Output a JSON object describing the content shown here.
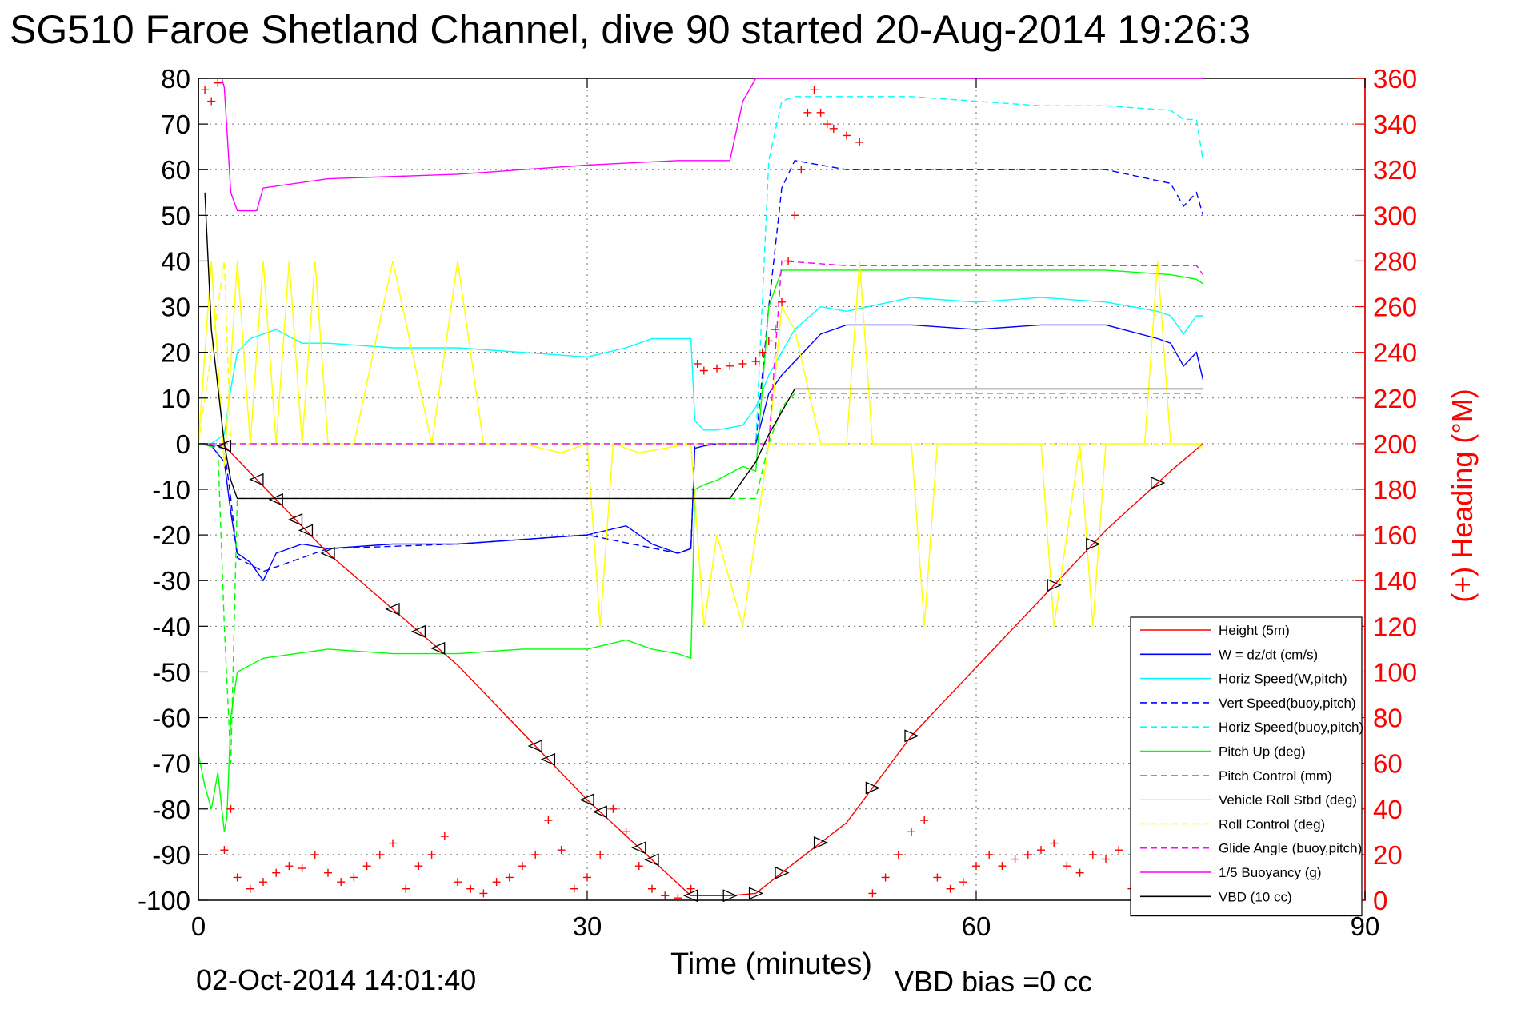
{
  "chart_data": {
    "type": "line",
    "title": "SG510 Faroe Shetland Channel, dive 90 started 20-Aug-2014 19:26:3",
    "xlabel": "Time (minutes)",
    "ylabel": "",
    "ylabel_right": "(+) Heading (°M)",
    "xlim": [
      0,
      90
    ],
    "ylim": [
      -100,
      80
    ],
    "ylim_right": [
      0,
      360
    ],
    "x_ticks": [
      "0",
      "30",
      "60",
      "90"
    ],
    "y_ticks": [
      "80",
      "70",
      "60",
      "50",
      "40",
      "30",
      "20",
      "10",
      "0",
      "-10",
      "-20",
      "-30",
      "-40",
      "-50",
      "-60",
      "-70",
      "-80",
      "-90",
      "-100"
    ],
    "y_right_ticks": [
      "360",
      "340",
      "320",
      "300",
      "280",
      "260",
      "240",
      "220",
      "200",
      "180",
      "160",
      "140",
      "120",
      "100",
      "80",
      "60",
      "40",
      "20",
      "0"
    ],
    "grid": true,
    "legend_position": "bottom-right",
    "footer_date": "02-Oct-2014 14:01:40",
    "footer_note": "VBD bias =0 cc",
    "series": [
      {
        "name": "Height (5m)",
        "color": "#ff0000",
        "style": "solid",
        "x": [
          0,
          2,
          10,
          20,
          30,
          38,
          41,
          43,
          45,
          50,
          55,
          60,
          65,
          70,
          75,
          77.5
        ],
        "y": [
          0,
          -0.5,
          -24,
          -48.5,
          -78,
          -99,
          -99,
          -98.5,
          -94,
          -83,
          -64,
          -49,
          -34,
          -19,
          -6,
          0
        ]
      },
      {
        "name": "W = dz/dt (cm/s)",
        "color": "#0000ff",
        "style": "solid",
        "x": [
          0,
          1,
          2,
          2.5,
          3,
          4,
          5,
          6,
          8,
          10,
          15,
          20,
          25,
          30,
          33,
          35,
          37,
          38,
          38.3,
          39,
          40,
          42,
          43,
          44,
          45,
          46,
          48,
          50,
          55,
          60,
          65,
          70,
          74,
          75,
          76,
          77,
          77.5
        ],
        "y": [
          0,
          -0.5,
          -4,
          -15,
          -24,
          -26,
          -30,
          -24,
          -22,
          -23,
          -22,
          -22,
          -21,
          -20,
          -18,
          -22,
          -24,
          -23,
          -1,
          -0.5,
          0,
          0,
          0,
          11,
          15,
          18,
          24,
          26,
          26,
          25,
          26,
          26,
          23,
          22,
          17,
          20,
          14
        ]
      },
      {
        "name": "Horiz Speed(W,pitch)",
        "color": "#00ffff",
        "style": "solid",
        "x": [
          0,
          1,
          2,
          2.5,
          3,
          4,
          6,
          8,
          10,
          15,
          20,
          25,
          30,
          33,
          35,
          37,
          38,
          38.3,
          39,
          40,
          42,
          43,
          44,
          45,
          46,
          48,
          50,
          55,
          60,
          65,
          70,
          74,
          75,
          76,
          77,
          77.5
        ],
        "y": [
          0,
          0,
          2,
          12,
          20,
          23,
          25,
          22,
          22,
          21,
          21,
          20,
          19,
          21,
          23,
          23,
          23,
          5,
          3,
          3,
          4,
          8,
          15,
          20,
          25,
          30,
          29,
          32,
          31,
          32,
          31,
          29,
          28,
          24,
          28,
          28
        ]
      },
      {
        "name": "Vert Speed(buoy,pitch)",
        "color": "#0000ff",
        "style": "dashed",
        "x": [
          0,
          2,
          2.5,
          3,
          5,
          10,
          20,
          30,
          37,
          38,
          38.3,
          42,
          43,
          44,
          45,
          46,
          50,
          60,
          70,
          75,
          76,
          77,
          77.5
        ],
        "y": [
          0,
          -1,
          -12,
          -25,
          -28,
          -23,
          -22,
          -20,
          -24,
          -23,
          0,
          0,
          0,
          30,
          56,
          62,
          60,
          60,
          60,
          57,
          52,
          55,
          50
        ]
      },
      {
        "name": "Horiz Speed(buoy,pitch)",
        "color": "#00ffff",
        "style": "dashed",
        "x": [
          0,
          2,
          2.5,
          3,
          38,
          38.3,
          43,
          44,
          45,
          46,
          50,
          55,
          60,
          65,
          70,
          75,
          76,
          77,
          77.5
        ],
        "y": [
          0,
          0,
          0,
          0,
          0,
          0,
          0,
          62,
          75,
          76,
          76,
          76,
          75,
          74,
          74,
          73,
          71,
          71,
          62
        ]
      },
      {
        "name": "Pitch Up (deg)",
        "color": "#00ff00",
        "style": "solid",
        "x": [
          0,
          0.5,
          1,
          1.5,
          2,
          2.2,
          2.5,
          3,
          5,
          10,
          15,
          20,
          25,
          30,
          33,
          35,
          37,
          38,
          38.3,
          39,
          40,
          42,
          43,
          44,
          45,
          50,
          55,
          60,
          65,
          70,
          75,
          77,
          77.5
        ],
        "y": [
          -68,
          -75,
          -80,
          -72,
          -85,
          -82,
          -60,
          -50,
          -47,
          -45,
          -46,
          -46,
          -45,
          -45,
          -43,
          -45,
          -46,
          -47,
          -10,
          -9,
          -8,
          -5,
          -6,
          30,
          38,
          38,
          38,
          38,
          38,
          38,
          37,
          36,
          35
        ]
      },
      {
        "name": "Pitch Control (mm)",
        "color": "#00ff00",
        "style": "dashed",
        "x": [
          0,
          1.5,
          2,
          2.5,
          3,
          38,
          38.3,
          41,
          43,
          44,
          45,
          46,
          50,
          60,
          70,
          77.5
        ],
        "y": [
          0,
          -1,
          -40,
          -70,
          -12,
          -12,
          -12,
          -12,
          -12,
          0,
          8,
          11,
          11,
          11,
          11,
          11
        ]
      },
      {
        "name": "Vehicle Roll Stbd (deg)",
        "color": "#ffff00",
        "style": "solid",
        "x": [
          0,
          1,
          2,
          3,
          4,
          5,
          6,
          7,
          8,
          9,
          10,
          12,
          15,
          18,
          20,
          22,
          25,
          28,
          30,
          31,
          32,
          34,
          36,
          38,
          39,
          40,
          42,
          44,
          45,
          46,
          48,
          50,
          51,
          52,
          55,
          56,
          57,
          60,
          65,
          66,
          68,
          69,
          70,
          73,
          74,
          75,
          77,
          77.5
        ],
        "y": [
          0,
          40,
          -5,
          40,
          0,
          40,
          0,
          40,
          0,
          40,
          0,
          0,
          40,
          0,
          40,
          0,
          0,
          -2,
          0,
          -40,
          0,
          -2,
          -1,
          0,
          -40,
          -20,
          -40,
          0,
          30,
          25,
          0,
          0,
          40,
          0,
          0,
          -40,
          0,
          0,
          0,
          -40,
          0,
          -40,
          0,
          0,
          40,
          0,
          0,
          -1
        ]
      },
      {
        "name": "Roll Control (deg)",
        "color": "#ffff00",
        "style": "dashed",
        "x": [
          0,
          2,
          2.5,
          3,
          5,
          10,
          15,
          20,
          25,
          30,
          38,
          40,
          44,
          50,
          60,
          70,
          77.5
        ],
        "y": [
          0,
          40,
          0,
          0,
          0,
          0,
          0,
          0,
          0,
          0,
          0,
          0,
          0,
          0,
          0,
          0,
          0
        ]
      },
      {
        "name": "Glide Angle (buoy,pitch)",
        "color": "#ff00ff",
        "style": "dashed",
        "x": [
          0,
          38,
          43,
          44,
          45,
          50,
          55,
          60,
          65,
          70,
          75,
          77,
          77.5
        ],
        "y": [
          0,
          0,
          0,
          0,
          40,
          39,
          39,
          39,
          39,
          39,
          39,
          39,
          37
        ]
      },
      {
        "name": "1/5 Buoyancy (g)",
        "color": "#ff00ff",
        "style": "solid",
        "x": [
          1.8,
          2,
          2.5,
          3,
          4,
          4.5,
          5,
          10,
          20,
          30,
          37,
          38,
          40,
          41,
          42,
          43,
          45,
          46,
          50,
          60,
          70,
          77.5
        ],
        "y": [
          80,
          78,
          55,
          51,
          51,
          51,
          56,
          58,
          59,
          61,
          62,
          62,
          62,
          62,
          75,
          80,
          80,
          80,
          80,
          80,
          80,
          80
        ]
      },
      {
        "name": "VBD (10 cc)",
        "color": "#000000",
        "style": "solid",
        "x": [
          0.5,
          1,
          2,
          2.5,
          3,
          38,
          41,
          43,
          44,
          45,
          46,
          50,
          60,
          70,
          77.5
        ],
        "y": [
          55,
          25,
          0,
          -8,
          -12,
          -12,
          -12,
          -4,
          2,
          7,
          12,
          12,
          12,
          12,
          12
        ]
      },
      {
        "name": "Heading",
        "color": "#ff0000",
        "style": "markers",
        "axis": "right",
        "x": [
          0.5,
          1,
          1.5,
          2,
          2.5,
          3,
          4,
          5,
          6,
          7,
          8,
          9,
          10,
          11,
          12,
          13,
          14,
          15,
          16,
          17,
          18,
          19,
          20,
          21,
          22,
          23,
          24,
          25,
          26,
          27,
          28,
          29,
          30,
          31,
          32,
          33,
          34,
          35,
          36,
          37,
          38,
          38.5,
          39,
          40,
          41,
          42,
          43,
          43.5,
          44,
          44.5,
          45,
          45.5,
          46,
          46.5,
          47,
          47.5,
          48,
          48.5,
          49,
          50,
          51,
          52,
          53,
          54,
          55,
          56,
          57,
          58,
          59,
          60,
          61,
          62,
          63,
          64,
          65,
          66,
          67,
          68,
          69,
          70,
          71,
          72,
          73,
          74,
          75,
          76,
          77
        ],
        "y": [
          355,
          350,
          358,
          22,
          40,
          10,
          5,
          8,
          12,
          15,
          14,
          20,
          12,
          8,
          10,
          15,
          20,
          25,
          5,
          15,
          20,
          28,
          8,
          5,
          3,
          8,
          10,
          15,
          20,
          35,
          22,
          5,
          10,
          20,
          40,
          30,
          15,
          5,
          2,
          1,
          5,
          235,
          232,
          233,
          234,
          235,
          236,
          240,
          245,
          250,
          262,
          280,
          300,
          320,
          345,
          355,
          345,
          340,
          338,
          335,
          332,
          3,
          10,
          20,
          30,
          35,
          10,
          5,
          8,
          15,
          20,
          15,
          18,
          20,
          22,
          25,
          15,
          12,
          20,
          18,
          22,
          5,
          3,
          2,
          1,
          0,
          1
        ]
      }
    ]
  }
}
